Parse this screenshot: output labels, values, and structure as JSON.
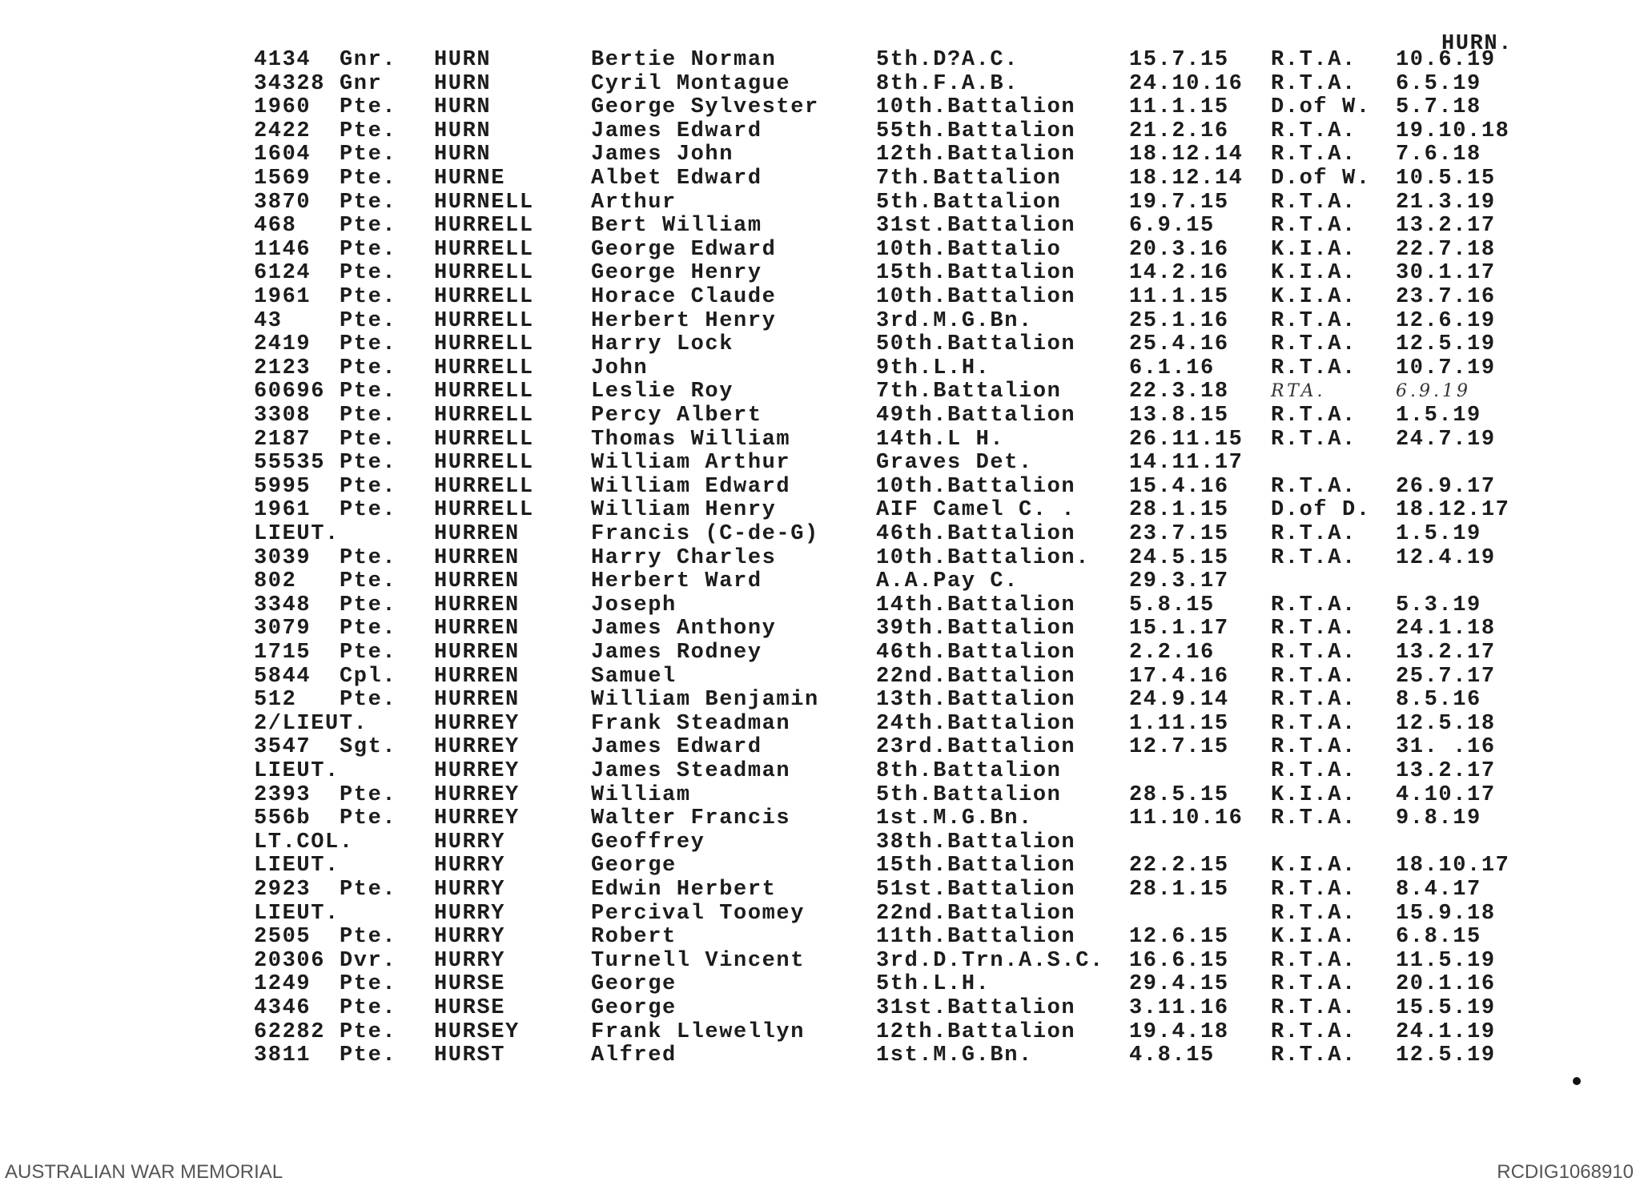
{
  "header_tag": "HURN.",
  "footer": {
    "left": "AUSTRALIAN WAR MEMORIAL",
    "right": "RCDIG1068910"
  },
  "rows": [
    {
      "number": "4134",
      "rank": "Gnr.",
      "surname": "HURN",
      "given_names": "Bertie Norman",
      "unit": "5th.D?A.C.",
      "enlisted": "15.7.15",
      "fate": "R.T.A.",
      "date": "10.6.19"
    },
    {
      "number": "34328",
      "rank": "Gnr",
      "surname": "HURN",
      "given_names": "Cyril Montague",
      "unit": "8th.F.A.B.",
      "enlisted": "24.10.16",
      "fate": "R.T.A.",
      "date": "6.5.19"
    },
    {
      "number": "1960",
      "rank": "Pte.",
      "surname": "HURN",
      "given_names": "George Sylvester",
      "unit": "10th.Battalion",
      "enlisted": "11.1.15",
      "fate": "D.of W.",
      "date": "5.7.18"
    },
    {
      "number": "2422",
      "rank": "Pte.",
      "surname": "HURN",
      "given_names": "James Edward",
      "unit": "55th.Battalion",
      "enlisted": "21.2.16",
      "fate": "R.T.A.",
      "date": "19.10.18"
    },
    {
      "number": "1604",
      "rank": "Pte.",
      "surname": "HURN",
      "given_names": "James John",
      "unit": "12th.Battalion",
      "enlisted": "18.12.14",
      "fate": "R.T.A.",
      "date": "7.6.18"
    },
    {
      "number": "1569",
      "rank": "Pte.",
      "surname": "HURNE",
      "given_names": "Albet Edward",
      "unit": "7th.Battalion",
      "enlisted": "18.12.14",
      "fate": "D.of W.",
      "date": "10.5.15"
    },
    {
      "number": "3870",
      "rank": "Pte.",
      "surname": "HURNELL",
      "given_names": "Arthur",
      "unit": "5th.Battalion",
      "enlisted": "19.7.15",
      "fate": "R.T.A.",
      "date": "21.3.19"
    },
    {
      "number": "468",
      "rank": "Pte.",
      "surname": "HURRELL",
      "given_names": "Bert William",
      "unit": "31st.Battalion",
      "enlisted": "6.9.15",
      "fate": "R.T.A.",
      "date": "13.2.17"
    },
    {
      "number": "1146",
      "rank": "Pte.",
      "surname": "HURRELL",
      "given_names": "George Edward",
      "unit": "10th.Battalio",
      "enlisted": "20.3.16",
      "fate": "K.I.A.",
      "date": "22.7.18"
    },
    {
      "number": "6124",
      "rank": "Pte.",
      "surname": "HURRELL",
      "given_names": "George Henry",
      "unit": "15th.Battalion",
      "enlisted": "14.2.16",
      "fate": "K.I.A.",
      "date": "30.1.17"
    },
    {
      "number": "1961",
      "rank": "Pte.",
      "surname": "HURRELL",
      "given_names": "Horace Claude",
      "unit": "10th.Battalion",
      "enlisted": "11.1.15",
      "fate": "K.I.A.",
      "date": "23.7.16"
    },
    {
      "number": "43",
      "rank": "Pte.",
      "surname": "HURRELL",
      "given_names": "Herbert Henry",
      "unit": "3rd.M.G.Bn.",
      "enlisted": "25.1.16",
      "fate": "R.T.A.",
      "date": "12.6.19"
    },
    {
      "number": "2419",
      "rank": "Pte.",
      "surname": "HURRELL",
      "given_names": "Harry Lock",
      "unit": "50th.Battalion",
      "enlisted": "25.4.16",
      "fate": "R.T.A.",
      "date": "12.5.19"
    },
    {
      "number": "2123",
      "rank": "Pte.",
      "surname": "HURRELL",
      "given_names": "John",
      "unit": "9th.L.H.",
      "enlisted": "6.1.16",
      "fate": "R.T.A.",
      "date": "10.7.19"
    },
    {
      "number": "60696",
      "rank": "Pte.",
      "surname": "HURRELL",
      "given_names": "Leslie Roy",
      "unit": "7th.Battalion",
      "enlisted": "22.3.18",
      "fate": "RTA.",
      "date": "6.9.19",
      "handwritten": true
    },
    {
      "number": "3308",
      "rank": "Pte.",
      "surname": "HURRELL",
      "given_names": "Percy Albert",
      "unit": "49th.Battalion",
      "enlisted": "13.8.15",
      "fate": "R.T.A.",
      "date": "1.5.19"
    },
    {
      "number": "2187",
      "rank": "Pte.",
      "surname": "HURRELL",
      "given_names": "Thomas William",
      "unit": "14th.L H.",
      "enlisted": "26.11.15",
      "fate": "R.T.A.",
      "date": "24.7.19"
    },
    {
      "number": "55535",
      "rank": "Pte.",
      "surname": "HURRELL",
      "given_names": "William Arthur",
      "unit": "Graves Det.",
      "enlisted": "14.11.17",
      "fate": "",
      "date": ""
    },
    {
      "number": "5995",
      "rank": "Pte.",
      "surname": "HURRELL",
      "given_names": "William Edward",
      "unit": "10th.Battalion",
      "enlisted": "15.4.16",
      "fate": "R.T.A.",
      "date": "26.9.17"
    },
    {
      "number": "1961",
      "rank": "Pte.",
      "surname": "HURRELL",
      "given_names": "William Henry",
      "unit": "AIF Camel C. .",
      "enlisted": "28.1.15",
      "fate": "D.of D.",
      "date": "18.12.17"
    },
    {
      "number": "LIEUT.",
      "rank": "",
      "surname": "HURREN",
      "given_names": "Francis (C-de-G)",
      "unit": "46th.Battalion",
      "enlisted": "23.7.15",
      "fate": "R.T.A.",
      "date": "1.5.19"
    },
    {
      "number": "3039",
      "rank": "Pte.",
      "surname": "HURREN",
      "given_names": "Harry Charles",
      "unit": "10th.Battalion.",
      "enlisted": "24.5.15",
      "fate": "R.T.A.",
      "date": "12.4.19"
    },
    {
      "number": "802",
      "rank": "Pte.",
      "surname": "HURREN",
      "given_names": "Herbert Ward",
      "unit": "A.A.Pay C.",
      "enlisted": "29.3.17",
      "fate": "",
      "date": ""
    },
    {
      "number": "3348",
      "rank": "Pte.",
      "surname": "HURREN",
      "given_names": "Joseph",
      "unit": "14th.Battalion",
      "enlisted": "5.8.15",
      "fate": "R.T.A.",
      "date": "5.3.19"
    },
    {
      "number": "3079",
      "rank": "Pte.",
      "surname": "HURREN",
      "given_names": "James Anthony",
      "unit": "39th.Battalion",
      "enlisted": "15.1.17",
      "fate": "R.T.A.",
      "date": "24.1.18"
    },
    {
      "number": "1715",
      "rank": "Pte.",
      "surname": "HURREN",
      "given_names": "James Rodney",
      "unit": "46th.Battalion",
      "enlisted": "2.2.16",
      "fate": "R.T.A.",
      "date": "13.2.17"
    },
    {
      "number": "5844",
      "rank": "Cpl.",
      "surname": "HURREN",
      "given_names": "Samuel",
      "unit": "22nd.Battalion",
      "enlisted": "17.4.16",
      "fate": "R.T.A.",
      "date": "25.7.17"
    },
    {
      "number": "512",
      "rank": "Pte.",
      "surname": "HURREN",
      "given_names": "William Benjamin",
      "unit": "13th.Battalion",
      "enlisted": "24.9.14",
      "fate": "R.T.A.",
      "date": "8.5.16"
    },
    {
      "number": "2/LIEUT.",
      "rank": "",
      "surname": "HURREY",
      "given_names": "Frank Steadman",
      "unit": "24th.Battalion",
      "enlisted": "1.11.15",
      "fate": "R.T.A.",
      "date": "12.5.18"
    },
    {
      "number": "3547",
      "rank": "Sgt.",
      "surname": "HURREY",
      "given_names": "James Edward",
      "unit": "23rd.Battalion",
      "enlisted": "12.7.15",
      "fate": "R.T.A.",
      "date": "31. .16"
    },
    {
      "number": "LIEUT.",
      "rank": "",
      "surname": "HURREY",
      "given_names": "James Steadman",
      "unit": "8th.Battalion",
      "enlisted": "",
      "fate": "R.T.A.",
      "date": "13.2.17"
    },
    {
      "number": "2393",
      "rank": "Pte.",
      "surname": "HURREY",
      "given_names": "William",
      "unit": "5th.Battalion",
      "enlisted": "28.5.15",
      "fate": "K.I.A.",
      "date": "4.10.17"
    },
    {
      "number": "556b",
      "rank": "Pte.",
      "surname": "HURREY",
      "given_names": "Walter Francis",
      "unit": "1st.M.G.Bn.",
      "enlisted": "11.10.16",
      "fate": "R.T.A.",
      "date": "9.8.19"
    },
    {
      "number": "LT.COL.",
      "rank": "",
      "surname": "HURRY",
      "given_names": "Geoffrey",
      "unit": "38th.Battalion",
      "enlisted": "",
      "fate": "",
      "date": ""
    },
    {
      "number": "LIEUT.",
      "rank": "",
      "surname": "HURRY",
      "given_names": "George",
      "unit": "15th.Battalion",
      "enlisted": "22.2.15",
      "fate": "K.I.A.",
      "date": "18.10.17"
    },
    {
      "number": "2923",
      "rank": "Pte.",
      "surname": "HURRY",
      "given_names": "Edwin Herbert",
      "unit": "51st.Battalion",
      "enlisted": "28.1.15",
      "fate": "R.T.A.",
      "date": "8.4.17"
    },
    {
      "number": "LIEUT.",
      "rank": "",
      "surname": "HURRY",
      "given_names": "Percival Toomey",
      "unit": "22nd.Battalion",
      "enlisted": "",
      "fate": "R.T.A.",
      "date": "15.9.18"
    },
    {
      "number": "2505",
      "rank": "Pte.",
      "surname": "HURRY",
      "given_names": "Robert",
      "unit": "11th.Battalion",
      "enlisted": "12.6.15",
      "fate": "K.I.A.",
      "date": "6.8.15"
    },
    {
      "number": "20306",
      "rank": "Dvr.",
      "surname": "HURRY",
      "given_names": "Turnell Vincent",
      "unit": "3rd.D.Trn.A.S.C.",
      "enlisted": "16.6.15",
      "fate": "R.T.A.",
      "date": "11.5.19"
    },
    {
      "number": "1249",
      "rank": "Pte.",
      "surname": "HURSE",
      "given_names": "George",
      "unit": "5th.L.H.",
      "enlisted": "29.4.15",
      "fate": "R.T.A.",
      "date": "20.1.16"
    },
    {
      "number": "4346",
      "rank": "Pte.",
      "surname": "HURSE",
      "given_names": "George",
      "unit": "31st.Battalion",
      "enlisted": "3.11.16",
      "fate": "R.T.A.",
      "date": "15.5.19"
    },
    {
      "number": "62282",
      "rank": "Pte.",
      "surname": "HURSEY",
      "given_names": "Frank Llewellyn",
      "unit": "12th.Battalion",
      "enlisted": "19.4.18",
      "fate": "R.T.A.",
      "date": "24.1.19"
    },
    {
      "number": "3811",
      "rank": "Pte.",
      "surname": "HURST",
      "given_names": "Alfred",
      "unit": "1st.M.G.Bn.",
      "enlisted": "4.8.15",
      "fate": "R.T.A.",
      "date": "12.5.19"
    }
  ]
}
